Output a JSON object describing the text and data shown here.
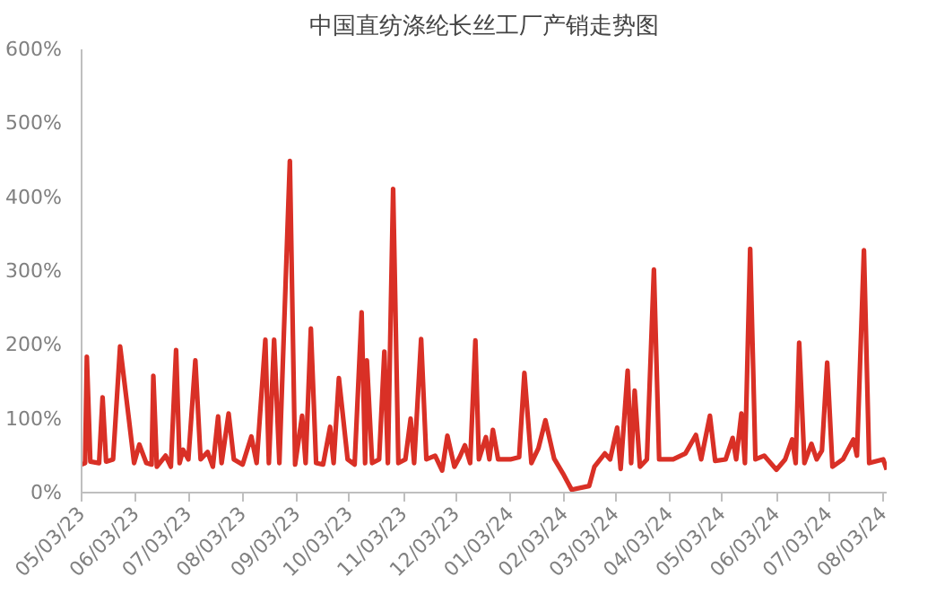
{
  "chart_data": {
    "type": "line",
    "title": "中国直纺涤纶长丝工厂产销走势图",
    "xlim": [
      "2023-05-03",
      "2024-08-05"
    ],
    "xticks": [
      {
        "value": "2023-05-03",
        "label": "05/03/23"
      },
      {
        "value": "2023-06-03",
        "label": "06/03/23"
      },
      {
        "value": "2023-07-03",
        "label": "07/03/23"
      },
      {
        "value": "2023-08-03",
        "label": "08/03/23"
      },
      {
        "value": "2023-09-03",
        "label": "09/03/23"
      },
      {
        "value": "2023-10-03",
        "label": "10/03/23"
      },
      {
        "value": "2023-11-03",
        "label": "11/03/23"
      },
      {
        "value": "2023-12-03",
        "label": "12/03/23"
      },
      {
        "value": "2024-01-03",
        "label": "01/03/24"
      },
      {
        "value": "2024-02-03",
        "label": "02/03/24"
      },
      {
        "value": "2024-03-03",
        "label": "03/03/24"
      },
      {
        "value": "2024-04-03",
        "label": "04/03/24"
      },
      {
        "value": "2024-05-03",
        "label": "05/03/24"
      },
      {
        "value": "2024-06-03",
        "label": "06/03/24"
      },
      {
        "value": "2024-07-03",
        "label": "07/03/24"
      },
      {
        "value": "2024-08-03",
        "label": "08/03/24"
      }
    ],
    "ylim": [
      0,
      600
    ],
    "yticks": [
      {
        "value": 0,
        "label": "0%"
      },
      {
        "value": 100,
        "label": "100%"
      },
      {
        "value": 200,
        "label": "200%"
      },
      {
        "value": 300,
        "label": "300%"
      },
      {
        "value": 400,
        "label": "400%"
      },
      {
        "value": 500,
        "label": "500%"
      },
      {
        "value": 600,
        "label": "600%"
      }
    ],
    "grid": false,
    "marker": "none",
    "line_style": "solid",
    "series": [
      {
        "color": "#d93026",
        "x": [
          "2023-05-03",
          "2023-05-05",
          "2023-05-06",
          "2023-05-08",
          "2023-05-13",
          "2023-05-15",
          "2023-05-17",
          "2023-05-21",
          "2023-05-25",
          "2023-05-30",
          "2023-06-02",
          "2023-06-05",
          "2023-06-09",
          "2023-06-12",
          "2023-06-13",
          "2023-06-15",
          "2023-06-20",
          "2023-06-23",
          "2023-06-26",
          "2023-06-28",
          "2023-06-30",
          "2023-07-03",
          "2023-07-07",
          "2023-07-10",
          "2023-07-14",
          "2023-07-17",
          "2023-07-20",
          "2023-07-22",
          "2023-07-26",
          "2023-07-29",
          "2023-08-03",
          "2023-08-08",
          "2023-08-11",
          "2023-08-16",
          "2023-08-18",
          "2023-08-21",
          "2023-08-24",
          "2023-08-30",
          "2023-09-02",
          "2023-09-06",
          "2023-09-08",
          "2023-09-11",
          "2023-09-14",
          "2023-09-18",
          "2023-09-22",
          "2023-09-24",
          "2023-09-27",
          "2023-10-02",
          "2023-10-06",
          "2023-10-10",
          "2023-10-12",
          "2023-10-13",
          "2023-10-16",
          "2023-10-20",
          "2023-10-23",
          "2023-10-25",
          "2023-10-28",
          "2023-10-31",
          "2023-11-04",
          "2023-11-07",
          "2023-11-09",
          "2023-11-13",
          "2023-11-16",
          "2023-11-21",
          "2023-11-25",
          "2023-11-28",
          "2023-12-02",
          "2023-12-05",
          "2023-12-08",
          "2023-12-11",
          "2023-12-14",
          "2023-12-16",
          "2023-12-20",
          "2023-12-22",
          "2023-12-24",
          "2023-12-27",
          "2024-01-03",
          "2024-01-08",
          "2024-01-11",
          "2024-01-15",
          "2024-01-19",
          "2024-01-23",
          "2024-01-28",
          "2024-02-02",
          "2024-02-07",
          "2024-02-17",
          "2024-02-20",
          "2024-02-26",
          "2024-02-29",
          "2024-03-04",
          "2024-03-06",
          "2024-03-10",
          "2024-03-12",
          "2024-03-14",
          "2024-03-17",
          "2024-03-21",
          "2024-03-25",
          "2024-03-28",
          "2024-04-05",
          "2024-04-12",
          "2024-04-18",
          "2024-04-21",
          "2024-04-26",
          "2024-04-29",
          "2024-05-05",
          "2024-05-09",
          "2024-05-11",
          "2024-05-14",
          "2024-05-16",
          "2024-05-19",
          "2024-05-22",
          "2024-05-27",
          "2024-06-03",
          "2024-06-08",
          "2024-06-12",
          "2024-06-14",
          "2024-06-16",
          "2024-06-19",
          "2024-06-23",
          "2024-06-26",
          "2024-06-29",
          "2024-07-02",
          "2024-07-05",
          "2024-07-11",
          "2024-07-17",
          "2024-07-19",
          "2024-07-23",
          "2024-07-26",
          "2024-08-03",
          "2024-08-05"
        ],
        "values": [
          38,
          40,
          184,
          42,
          40,
          129,
          42,
          45,
          198,
          100,
          40,
          65,
          40,
          38,
          158,
          35,
          50,
          35,
          193,
          40,
          58,
          45,
          179,
          45,
          55,
          35,
          103,
          40,
          107,
          45,
          38,
          76,
          40,
          207,
          40,
          207,
          40,
          449,
          38,
          104,
          40,
          222,
          40,
          38,
          89,
          40,
          155,
          45,
          38,
          244,
          40,
          179,
          40,
          45,
          191,
          40,
          411,
          40,
          45,
          100,
          40,
          208,
          45,
          50,
          30,
          77,
          35,
          48,
          64,
          40,
          206,
          45,
          75,
          45,
          85,
          45,
          45,
          48,
          162,
          40,
          60,
          98,
          46,
          26,
          4,
          9,
          35,
          53,
          45,
          88,
          32,
          165,
          40,
          138,
          35,
          45,
          302,
          45,
          45,
          53,
          78,
          45,
          104,
          43,
          45,
          74,
          45,
          107,
          40,
          330,
          45,
          50,
          31,
          45,
          72,
          40,
          203,
          40,
          66,
          45,
          57,
          176,
          35,
          45,
          72,
          50,
          328,
          40,
          45,
          31
        ]
      }
    ]
  }
}
